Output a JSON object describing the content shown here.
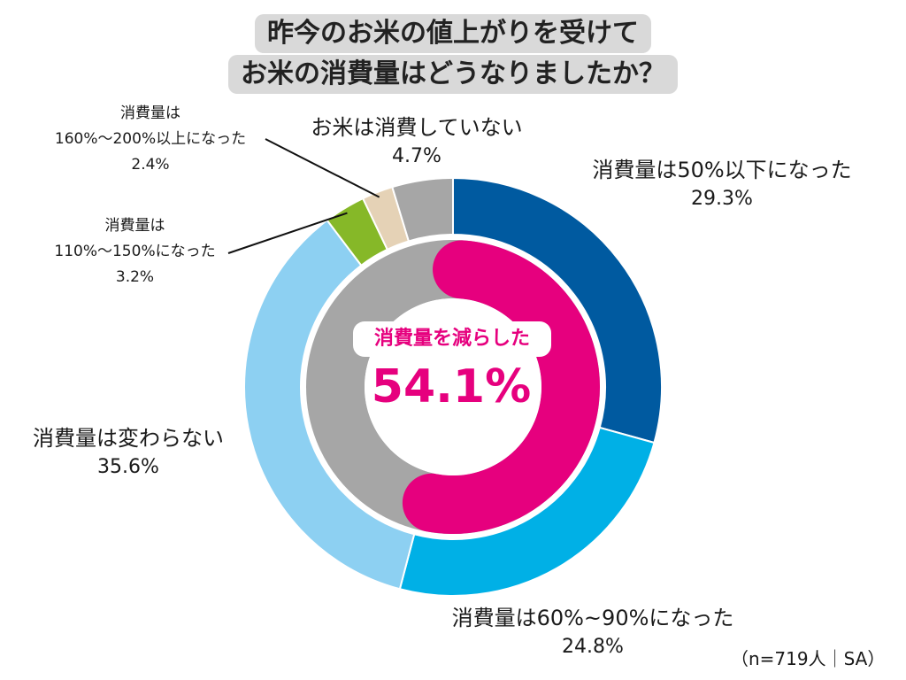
{
  "title": {
    "line1": "昨今のお米の値上がりを受けて",
    "line2": "お米の消費量はどうなりましたか？"
  },
  "chart_data": {
    "type": "pie",
    "donut": true,
    "outer_ring": {
      "slices": [
        {
          "name": "消費量は50%以下になった",
          "value": 29.3,
          "value_label": "29.3%",
          "color": "#005aa0"
        },
        {
          "name": "消費量は60%~90%になった",
          "value": 24.8,
          "value_label": "24.8%",
          "color": "#00b0e6"
        },
        {
          "name": "消費量は変わらない",
          "value": 35.6,
          "value_label": "35.6%",
          "color": "#8dd0f2"
        },
        {
          "name_line1": "消費量は",
          "name_line2": "110%〜150%になった",
          "value": 3.2,
          "value_label": "3.2%",
          "color": "#86b828"
        },
        {
          "name_line1": "消費量は",
          "name_line2": "160%〜200%以上になった",
          "value": 2.4,
          "value_label": "2.4%",
          "color": "#e5d2b6"
        },
        {
          "name": "お米は消費していない",
          "value": 4.7,
          "value_label": "4.7%",
          "color": "#a6a6a6"
        }
      ]
    },
    "inner_ring": {
      "highlight_value": 54.1,
      "highlight_color": "#e6007e",
      "rest_color": "#a6a6a6"
    },
    "center": {
      "label": "消費量を減らした",
      "value_label": "54.1%"
    },
    "note": "（n=719人｜SA）"
  }
}
